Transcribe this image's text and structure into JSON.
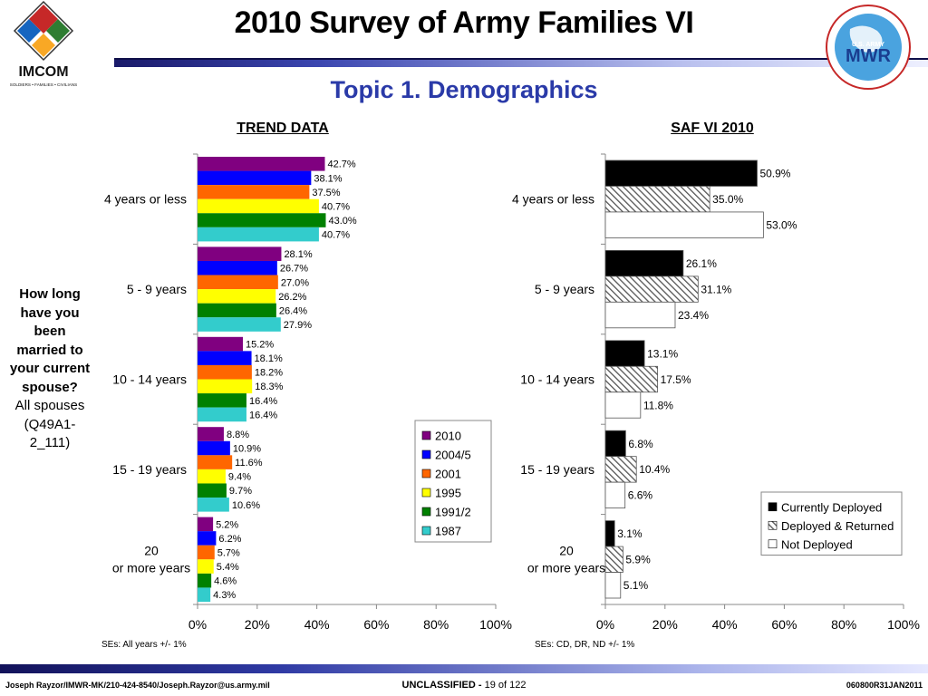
{
  "header": {
    "title": "2010 Survey of Army Families VI",
    "subtitle": "Topic 1. Demographics",
    "left_logo_text": "IMCOM",
    "left_logo_tagline": "SOLDIERS • FAMILIES • CIVILIANS",
    "right_logo_text": "MWR",
    "right_logo_small": "U.S. ARMY"
  },
  "question": {
    "line_bold": "How long have you been married to your current spouse?",
    "line_normal": "All spouses (Q49A1-2_111)"
  },
  "sections": {
    "left": "TREND DATA",
    "right": "SAF VI 2010"
  },
  "notes": {
    "left": "SEs: All years +/- 1%",
    "right": "SEs: CD, DR, ND +/- 1%"
  },
  "footer": {
    "left": "Joseph Rayzor/IMWR-MK/210-424-8540/Joseph.Rayzor@us.army.mil",
    "classification": "UNCLASSIFIED -",
    "page": "19 of 122",
    "right": "060800R31JAN2011"
  },
  "colors": {
    "title_blue": "#2a3aa8",
    "s2010": "#800080",
    "s2004": "#0000ff",
    "s2001": "#ff6600",
    "s1995": "#ffff00",
    "s1991": "#008000",
    "s1987": "#33cccc",
    "cd": "#000000",
    "dr": "hatched",
    "nd": "#ffffff"
  },
  "chart_data": [
    {
      "type": "bar",
      "orientation": "horizontal",
      "title": "TREND DATA",
      "categories": [
        "4 years or less",
        "5 - 9 years",
        "10 - 14 years",
        "15 - 19 years",
        "20  or more years"
      ],
      "xlim": [
        0,
        100
      ],
      "xticks": [
        "0%",
        "20%",
        "40%",
        "60%",
        "80%",
        "100%"
      ],
      "legend": "inside-right",
      "series": [
        {
          "name": "2010",
          "color": "#800080",
          "values": [
            42.7,
            28.1,
            15.2,
            8.8,
            5.2
          ],
          "labels": [
            "42.7%",
            "28.1%",
            "15.2%",
            "8.8%",
            "5.2%"
          ]
        },
        {
          "name": "2004/5",
          "color": "#0000ff",
          "values": [
            38.1,
            26.7,
            18.1,
            10.9,
            6.2
          ],
          "labels": [
            "38.1%",
            "26.7%",
            "18.1%",
            "10.9%",
            "6.2%"
          ]
        },
        {
          "name": "2001",
          "color": "#ff6600",
          "values": [
            37.5,
            27.0,
            18.2,
            11.6,
            5.7
          ],
          "labels": [
            "37.5%",
            "27.0%",
            "18.2%",
            "11.6%",
            "5.7%"
          ]
        },
        {
          "name": "1995",
          "color": "#ffff00",
          "values": [
            40.7,
            26.2,
            18.3,
            9.4,
            5.4
          ],
          "labels": [
            "40.7%",
            "26.2%",
            "18.3%",
            "9.4%",
            "5.4%"
          ]
        },
        {
          "name": "1991/2",
          "color": "#008000",
          "values": [
            43.0,
            26.4,
            16.4,
            9.7,
            4.6
          ],
          "labels": [
            "43.0%",
            "26.4%",
            "16.4%",
            "9.7%",
            "4.6%"
          ]
        },
        {
          "name": "1987",
          "color": "#33cccc",
          "values": [
            40.7,
            27.9,
            16.4,
            10.6,
            4.3
          ],
          "labels": [
            "40.7%",
            "27.9%",
            "16.4%",
            "10.6%",
            "4.3%"
          ]
        }
      ]
    },
    {
      "type": "bar",
      "orientation": "horizontal",
      "title": "SAF VI 2010",
      "categories": [
        "4 years or less",
        "5 - 9 years",
        "10 - 14 years",
        "15 - 19 years",
        "20  or more years"
      ],
      "xlim": [
        0,
        100
      ],
      "xticks": [
        "0%",
        "20%",
        "40%",
        "60%",
        "80%",
        "100%"
      ],
      "legend": "inside-right",
      "series": [
        {
          "name": "Currently Deployed",
          "color": "#000000",
          "pattern": "solid",
          "values": [
            50.9,
            26.1,
            13.1,
            6.8,
            3.1
          ],
          "labels": [
            "50.9%",
            "26.1%",
            "13.1%",
            "6.8%",
            "3.1%"
          ]
        },
        {
          "name": "Deployed & Returned",
          "color": "#808080",
          "pattern": "hatched",
          "values": [
            35.0,
            31.1,
            17.5,
            10.4,
            5.9
          ],
          "labels": [
            "35.0%",
            "31.1%",
            "17.5%",
            "10.4%",
            "5.9%"
          ]
        },
        {
          "name": "Not Deployed",
          "color": "#ffffff",
          "pattern": "solid",
          "values": [
            53.0,
            23.4,
            11.8,
            6.6,
            5.1
          ],
          "labels": [
            "53.0%",
            "23.4%",
            "11.8%",
            "6.6%",
            "5.1%"
          ]
        }
      ]
    }
  ]
}
